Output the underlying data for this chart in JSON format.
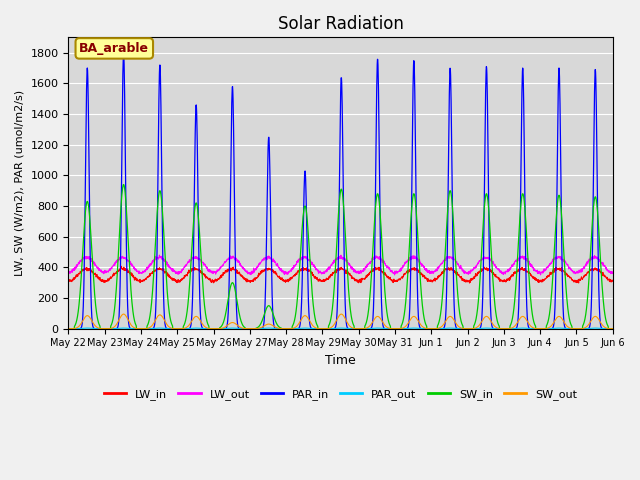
{
  "title": "Solar Radiation",
  "xlabel": "Time",
  "ylabel": "LW, SW (W/m2), PAR (umol/m2/s)",
  "annotation": "BA_arable",
  "ylim": [
    0,
    1900
  ],
  "yticks": [
    0,
    200,
    400,
    600,
    800,
    1000,
    1200,
    1400,
    1600,
    1800
  ],
  "xtick_labels": [
    "May 22",
    "May 23",
    "May 24",
    "May 25",
    "May 26",
    "May 27",
    "May 28",
    "May 29",
    "May 30",
    "May 31",
    "Jun 1",
    "Jun 2",
    "Jun 3",
    "Jun 4",
    "Jun 5",
    "Jun 6"
  ],
  "colors": {
    "LW_in": "#ff0000",
    "LW_out": "#ff00ff",
    "PAR_in": "#0000ff",
    "PAR_out": "#00ccff",
    "SW_in": "#00cc00",
    "SW_out": "#ff9900"
  },
  "plot_bg": "#d8d8d8",
  "annotation_bg": "#ffff99",
  "annotation_border": "#aa8800",
  "annotation_text_color": "#880000",
  "n_days": 15,
  "samples_per_day": 144,
  "PAR_in_peaks": [
    1700,
    1800,
    1720,
    1460,
    1580,
    1250,
    1030,
    1640,
    1760,
    1750,
    1700,
    1710,
    1700,
    1700,
    1690
  ],
  "SW_in_peaks": [
    830,
    940,
    900,
    820,
    300,
    150,
    800,
    910,
    880,
    880,
    900,
    880,
    880,
    870,
    860
  ],
  "SW_out_peaks": [
    85,
    95,
    90,
    80,
    40,
    30,
    85,
    95,
    80,
    80,
    80,
    80,
    80,
    80,
    80
  ],
  "LW_in_base": 350,
  "LW_in_amp": 40,
  "LW_out_base": 415,
  "LW_out_amp": 50,
  "legend_entries": [
    "LW_in",
    "LW_out",
    "PAR_in",
    "PAR_out",
    "SW_in",
    "SW_out"
  ]
}
